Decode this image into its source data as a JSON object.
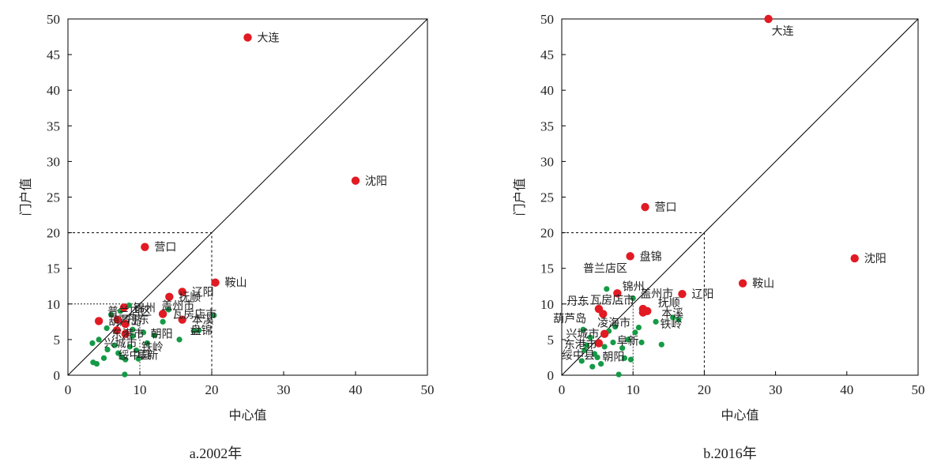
{
  "colors": {
    "major": "#e21a23",
    "minor": "#159a46"
  },
  "chart_data": [
    {
      "type": "scatter",
      "caption": "a.2002年",
      "xlabel": "中心值",
      "ylabel": "门户值",
      "xlim": [
        0,
        50
      ],
      "ylim": [
        0,
        50
      ],
      "xticks": [
        "0",
        "10",
        "20",
        "30",
        "40",
        "50"
      ],
      "yticks": [
        "0",
        "5",
        "10",
        "15",
        "20",
        "25",
        "30",
        "35",
        "40",
        "45",
        "50"
      ],
      "reference": {
        "diagonal": true,
        "dashed_box": 20,
        "inner_box": 10
      },
      "major_points": [
        {
          "x": 25.0,
          "y": 47.4,
          "label": "大连"
        },
        {
          "x": 40.0,
          "y": 27.3,
          "label": "沈阳"
        },
        {
          "x": 10.7,
          "y": 18.0,
          "label": "营口"
        },
        {
          "x": 20.5,
          "y": 13.0,
          "label": "鞍山"
        },
        {
          "x": 15.9,
          "y": 11.7,
          "label": "辽阳"
        },
        {
          "x": 14.1,
          "y": 11.0,
          "label": "抚顺"
        },
        {
          "x": 15.9,
          "y": 7.8,
          "label": "本溪"
        },
        {
          "x": 13.2,
          "y": 8.6,
          "label": "瓦房店市"
        },
        {
          "x": 7.8,
          "y": 9.5,
          "label": "锦州"
        },
        {
          "x": 4.3,
          "y": 7.6,
          "label": "葫芦岛"
        },
        {
          "x": 6.9,
          "y": 7.8,
          "label": "丹东"
        },
        {
          "x": 6.8,
          "y": 6.3,
          "label": ""
        },
        {
          "x": 8.0,
          "y": 7.2,
          "label": ""
        },
        {
          "x": 8.0,
          "y": 5.8,
          "label": ""
        }
      ],
      "minor_points": [
        {
          "x": 3.5,
          "y": 1.8
        },
        {
          "x": 4.0,
          "y": 1.6
        },
        {
          "x": 5.0,
          "y": 2.4
        },
        {
          "x": 5.5,
          "y": 3.6
        },
        {
          "x": 6.5,
          "y": 4.2
        },
        {
          "x": 7.0,
          "y": 3.1
        },
        {
          "x": 7.5,
          "y": 2.5
        },
        {
          "x": 8.0,
          "y": 2.2
        },
        {
          "x": 8.6,
          "y": 4.0
        },
        {
          "x": 9.0,
          "y": 5.5
        },
        {
          "x": 9.8,
          "y": 2.3
        },
        {
          "x": 10.5,
          "y": 6.0
        },
        {
          "x": 11.0,
          "y": 4.5
        },
        {
          "x": 12.0,
          "y": 5.6
        },
        {
          "x": 13.2,
          "y": 7.5
        },
        {
          "x": 14.0,
          "y": 9.2
        },
        {
          "x": 15.5,
          "y": 5.0
        },
        {
          "x": 17.5,
          "y": 6.2
        },
        {
          "x": 18.2,
          "y": 6.3
        },
        {
          "x": 20.3,
          "y": 8.4
        },
        {
          "x": 7.9,
          "y": 0.1
        },
        {
          "x": 5.4,
          "y": 6.6
        },
        {
          "x": 6.0,
          "y": 8.5
        },
        {
          "x": 4.3,
          "y": 5.0
        },
        {
          "x": 3.4,
          "y": 4.5
        },
        {
          "x": 9.0,
          "y": 6.4
        },
        {
          "x": 8.5,
          "y": 9.8
        },
        {
          "x": 7.3,
          "y": 9.0
        },
        {
          "x": 9.5,
          "y": 3.5
        }
      ],
      "extra_labels": [
        {
          "x": 5.5,
          "y": 9.0,
          "label": "普兰店区"
        },
        {
          "x": 13.0,
          "y": 9.8,
          "label": "盖州市"
        },
        {
          "x": 6.0,
          "y": 5.8,
          "label": "东港市"
        },
        {
          "x": 5.0,
          "y": 4.5,
          "label": "兴城市"
        },
        {
          "x": 7.0,
          "y": 2.8,
          "label": "绥中县"
        },
        {
          "x": 9.5,
          "y": 2.8,
          "label": "阜新"
        },
        {
          "x": 11.5,
          "y": 5.8,
          "label": "朝阳"
        },
        {
          "x": 10.2,
          "y": 4.0,
          "label": "铁岭"
        },
        {
          "x": 17.0,
          "y": 6.3,
          "label": "盘锦"
        }
      ]
    },
    {
      "type": "scatter",
      "caption": "b.2016年",
      "xlabel": "中心值",
      "ylabel": "门户值",
      "xlim": [
        0,
        50
      ],
      "ylim": [
        0,
        50
      ],
      "xticks": [
        "0",
        "10",
        "20",
        "30",
        "40",
        "50"
      ],
      "yticks": [
        "0",
        "5",
        "10",
        "15",
        "20",
        "25",
        "30",
        "35",
        "40",
        "45",
        "50"
      ],
      "reference": {
        "diagonal": true,
        "dashed_box": 20,
        "inner_box": 10
      },
      "major_points": [
        {
          "x": 29.0,
          "y": 50.0,
          "label": "大连"
        },
        {
          "x": 41.1,
          "y": 16.4,
          "label": "沈阳"
        },
        {
          "x": 11.7,
          "y": 23.6,
          "label": "营口"
        },
        {
          "x": 25.4,
          "y": 12.9,
          "label": "鞍山"
        },
        {
          "x": 9.6,
          "y": 16.7,
          "label": "盘锦"
        },
        {
          "x": 16.9,
          "y": 11.4,
          "label": "辽阳"
        },
        {
          "x": 7.8,
          "y": 11.5,
          "label": ""
        },
        {
          "x": 5.2,
          "y": 9.3,
          "label": ""
        },
        {
          "x": 5.8,
          "y": 8.6,
          "label": ""
        },
        {
          "x": 11.4,
          "y": 9.3,
          "label": ""
        },
        {
          "x": 11.4,
          "y": 8.8,
          "label": ""
        },
        {
          "x": 12.0,
          "y": 9.0,
          "label": ""
        },
        {
          "x": 5.2,
          "y": 4.5,
          "label": ""
        },
        {
          "x": 6.0,
          "y": 5.8,
          "label": ""
        }
      ],
      "minor_points": [
        {
          "x": 2.8,
          "y": 2.0
        },
        {
          "x": 3.2,
          "y": 3.5
        },
        {
          "x": 3.5,
          "y": 4.2
        },
        {
          "x": 4.0,
          "y": 5.3
        },
        {
          "x": 4.3,
          "y": 1.2
        },
        {
          "x": 4.6,
          "y": 3.0
        },
        {
          "x": 5.0,
          "y": 2.5
        },
        {
          "x": 5.5,
          "y": 1.6
        },
        {
          "x": 6.0,
          "y": 4.0
        },
        {
          "x": 6.3,
          "y": 12.1
        },
        {
          "x": 6.6,
          "y": 6.2
        },
        {
          "x": 7.2,
          "y": 4.6
        },
        {
          "x": 7.5,
          "y": 6.8
        },
        {
          "x": 8.0,
          "y": 0.1
        },
        {
          "x": 8.5,
          "y": 3.8
        },
        {
          "x": 8.8,
          "y": 2.4
        },
        {
          "x": 9.3,
          "y": 5.0
        },
        {
          "x": 9.7,
          "y": 2.2
        },
        {
          "x": 10.0,
          "y": 10.8
        },
        {
          "x": 10.3,
          "y": 6.0
        },
        {
          "x": 10.8,
          "y": 6.7
        },
        {
          "x": 13.2,
          "y": 7.5
        },
        {
          "x": 14.0,
          "y": 4.3
        },
        {
          "x": 15.6,
          "y": 8.1
        },
        {
          "x": 16.4,
          "y": 7.8
        },
        {
          "x": 3.0,
          "y": 6.4
        },
        {
          "x": 11.2,
          "y": 4.6
        }
      ],
      "extra_labels": [
        {
          "x": 3.0,
          "y": 15.0,
          "label": "普兰店区"
        },
        {
          "x": 8.5,
          "y": 12.5,
          "label": "锦州"
        },
        {
          "x": 11.0,
          "y": 11.5,
          "label": "盖州市"
        },
        {
          "x": 0.7,
          "y": 10.4,
          "label": "丹东"
        },
        {
          "x": 4.0,
          "y": 10.6,
          "label": "瓦房店市"
        },
        {
          "x": 13.5,
          "y": 10.2,
          "label": "抚顺"
        },
        {
          "x": 14.0,
          "y": 8.7,
          "label": "本溪"
        },
        {
          "x": 13.8,
          "y": 7.2,
          "label": "铁岭"
        },
        {
          "x": -1.2,
          "y": 8.0,
          "label": "葫芦岛"
        },
        {
          "x": 5.0,
          "y": 7.4,
          "label": "凌海市"
        },
        {
          "x": 0.6,
          "y": 5.8,
          "label": "兴城市"
        },
        {
          "x": 0.3,
          "y": 4.3,
          "label": "东港市"
        },
        {
          "x": 0.0,
          "y": 2.8,
          "label": "绥中县"
        },
        {
          "x": 7.7,
          "y": 4.8,
          "label": "阜新"
        },
        {
          "x": 5.7,
          "y": 2.6,
          "label": "朝阳"
        }
      ]
    }
  ]
}
